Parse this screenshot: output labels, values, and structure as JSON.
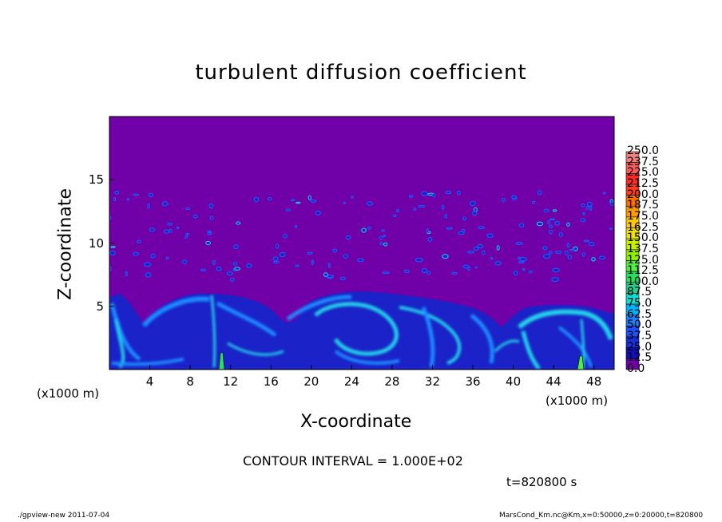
{
  "page": {
    "title": "turbulent diffusion coefficient",
    "contour_interval": "CONTOUR INTERVAL = 1.000E+02",
    "time_label": "t=820800 s",
    "footer_left": "./gpview-new   2011-07-04",
    "footer_right": "MarsCond_Km.nc@Km,x=0:50000,z=0:20000,t=820800"
  },
  "chart_data": {
    "type": "heatmap",
    "title": "turbulent diffusion coefficient",
    "xlabel": "X-coordinate",
    "ylabel": "Z-coordinate",
    "x_unit": "(x1000 m)",
    "xlim": [
      0,
      50
    ],
    "ylim": [
      0,
      20
    ],
    "x_ticks": [
      "4",
      "8",
      "12",
      "16",
      "20",
      "24",
      "28",
      "32",
      "36",
      "40",
      "44",
      "48"
    ],
    "y_ticks": [
      "5",
      "10",
      "15"
    ],
    "colorbar": {
      "levels": [
        "250.0",
        "237.5",
        "225.0",
        "212.5",
        "200.0",
        "187.5",
        "175.0",
        "162.5",
        "150.0",
        "137.5",
        "125.0",
        "112.5",
        "100.0",
        "87.5",
        "75.0",
        "62.5",
        "50.0",
        "37.5",
        "25.0",
        "12.5",
        "0.0"
      ],
      "colors": [
        "#f08080",
        "#ff5a5a",
        "#ff2a2a",
        "#ff3c1e",
        "#ff6e00",
        "#ff9a00",
        "#ffc800",
        "#f0e000",
        "#c8f000",
        "#90f000",
        "#50f040",
        "#28e060",
        "#20d090",
        "#10e0d0",
        "#00b4ff",
        "#2080ff",
        "#2050ff",
        "#1830e0",
        "#1010b8",
        "#7000a8"
      ]
    },
    "contour_interval": 100,
    "background_value": 0,
    "mixed_layer_top": 6,
    "time": "t=820800 s"
  }
}
